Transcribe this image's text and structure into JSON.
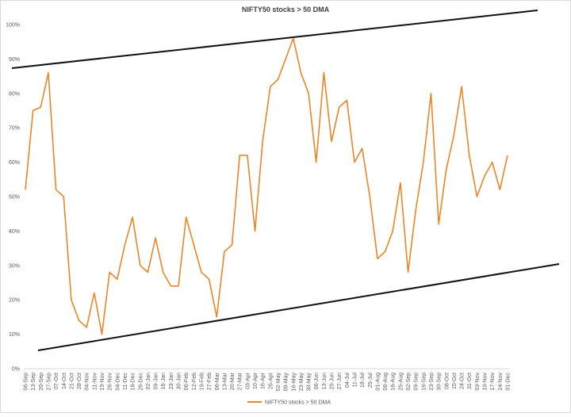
{
  "chart_data": {
    "type": "line",
    "title": "NIFTY50 stocks > 50 DMA",
    "categories": [
      "06-Sep",
      "13-Sep",
      "20-Sep",
      "27-Sep",
      "07-Oct",
      "14-Oct",
      "21-Oct",
      "28-Oct",
      "04-Nov",
      "11-Nov",
      "19-Nov",
      "26-Nov",
      "04-Dec",
      "11-Dec",
      "18-Dec",
      "26-Dec",
      "02-Jan",
      "09-Jan",
      "16-Jan",
      "23-Jan",
      "30-Jan",
      "06-Feb",
      "12-Feb",
      "19-Feb",
      "27-Feb",
      "06-Mar",
      "13-Mar",
      "20-Mar",
      "27-Mar",
      "03-Apr",
      "10-Apr",
      "16-Apr",
      "25-Apr",
      "02-May",
      "09-May",
      "16-May",
      "23-May",
      "30-May",
      "06-Jun",
      "13-Jun",
      "20-Jun",
      "27-Jun",
      "04-Jul",
      "11-Jul",
      "18-Jul",
      "25-Jul",
      "01-Aug",
      "08-Aug",
      "16-Aug",
      "25-Aug",
      "02-Sep",
      "09-Sep",
      "16-Sep",
      "23-Sep",
      "30-Sep",
      "08-Oct",
      "15-Oct",
      "24-Oct",
      "31-Oct",
      "03-Nov",
      "10-Nov",
      "17-Nov",
      "24-Nov",
      "01-Dec"
    ],
    "series": [
      {
        "name": "NIFTY50 stocks > 50 DMA",
        "color": "#e8862c",
        "values": [
          52,
          75,
          76,
          86,
          52,
          50,
          20,
          14,
          12,
          22,
          10,
          28,
          26,
          36,
          44,
          30,
          28,
          38,
          28,
          24,
          24,
          44,
          36,
          28,
          26,
          15,
          34,
          36,
          62,
          62,
          40,
          66,
          82,
          84,
          90,
          96,
          86,
          80,
          60,
          86,
          66,
          76,
          78,
          60,
          64,
          50,
          32,
          34,
          40,
          54,
          28,
          46,
          60,
          80,
          42,
          58,
          68,
          82,
          62,
          50,
          56,
          60,
          52,
          62
        ]
      }
    ],
    "ylim": [
      0,
      100
    ],
    "yticks": [
      {
        "value": 0,
        "label": "0%"
      },
      {
        "value": 10,
        "label": "10%"
      },
      {
        "value": 20,
        "label": "20%"
      },
      {
        "value": 30,
        "label": "30%"
      },
      {
        "value": 40,
        "label": "40%"
      },
      {
        "value": 50,
        "label": "50%"
      },
      {
        "value": 60,
        "label": "60%"
      },
      {
        "value": 70,
        "label": "70%"
      },
      {
        "value": 80,
        "label": "80%"
      },
      {
        "value": 90,
        "label": "90%"
      },
      {
        "value": 100,
        "label": "100%"
      }
    ],
    "grid": false,
    "legend": "bottom"
  }
}
